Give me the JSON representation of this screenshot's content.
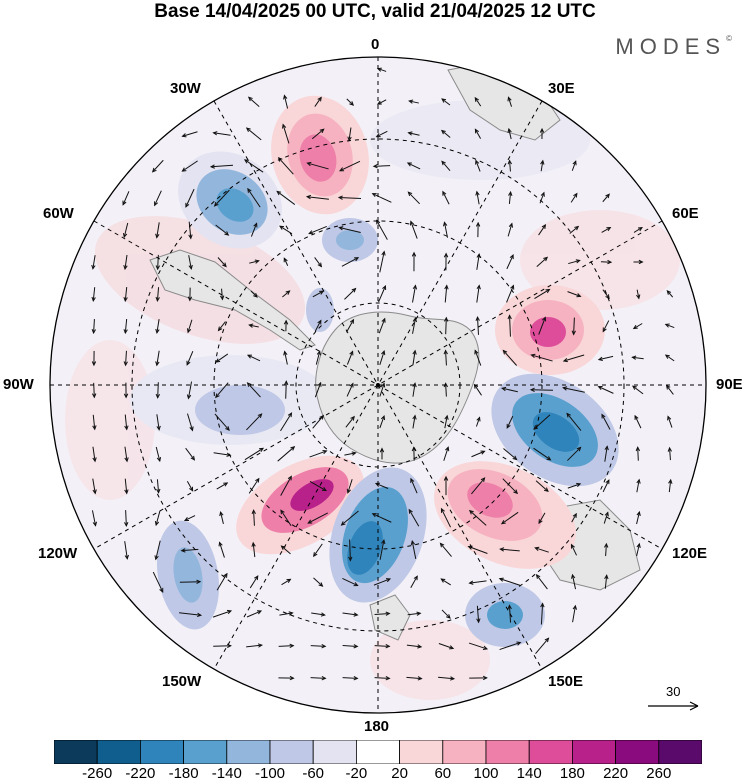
{
  "title": "Base 14/04/2025 00 UTC, valid 21/04/2025 12 UTC",
  "brand": "MODES",
  "brand_mark": "©",
  "longitude_labels": [
    "0",
    "30E",
    "60E",
    "90E",
    "120E",
    "150E",
    "180",
    "150W",
    "120W",
    "90W",
    "60W",
    "30W"
  ],
  "reference_vector": "30",
  "colorbar": {
    "ticks": [
      "-260",
      "-220",
      "-180",
      "-140",
      "-100",
      "-60",
      "-20",
      "20",
      "60",
      "100",
      "140",
      "180",
      "220",
      "260"
    ],
    "colors": [
      "#0b3a5a",
      "#105e8e",
      "#2f84bb",
      "#5aa0cf",
      "#93b6dc",
      "#bfc8e6",
      "#e3e3f1",
      "#ffffff",
      "#f9d6d8",
      "#f6b2c0",
      "#ee7fa8",
      "#dd4d9a",
      "#b8208a",
      "#8a0b7d",
      "#5a0a6a"
    ]
  },
  "colors": {
    "land": "#e8e8e8",
    "coast": "#8a8a8a",
    "grid": "#000000"
  }
}
